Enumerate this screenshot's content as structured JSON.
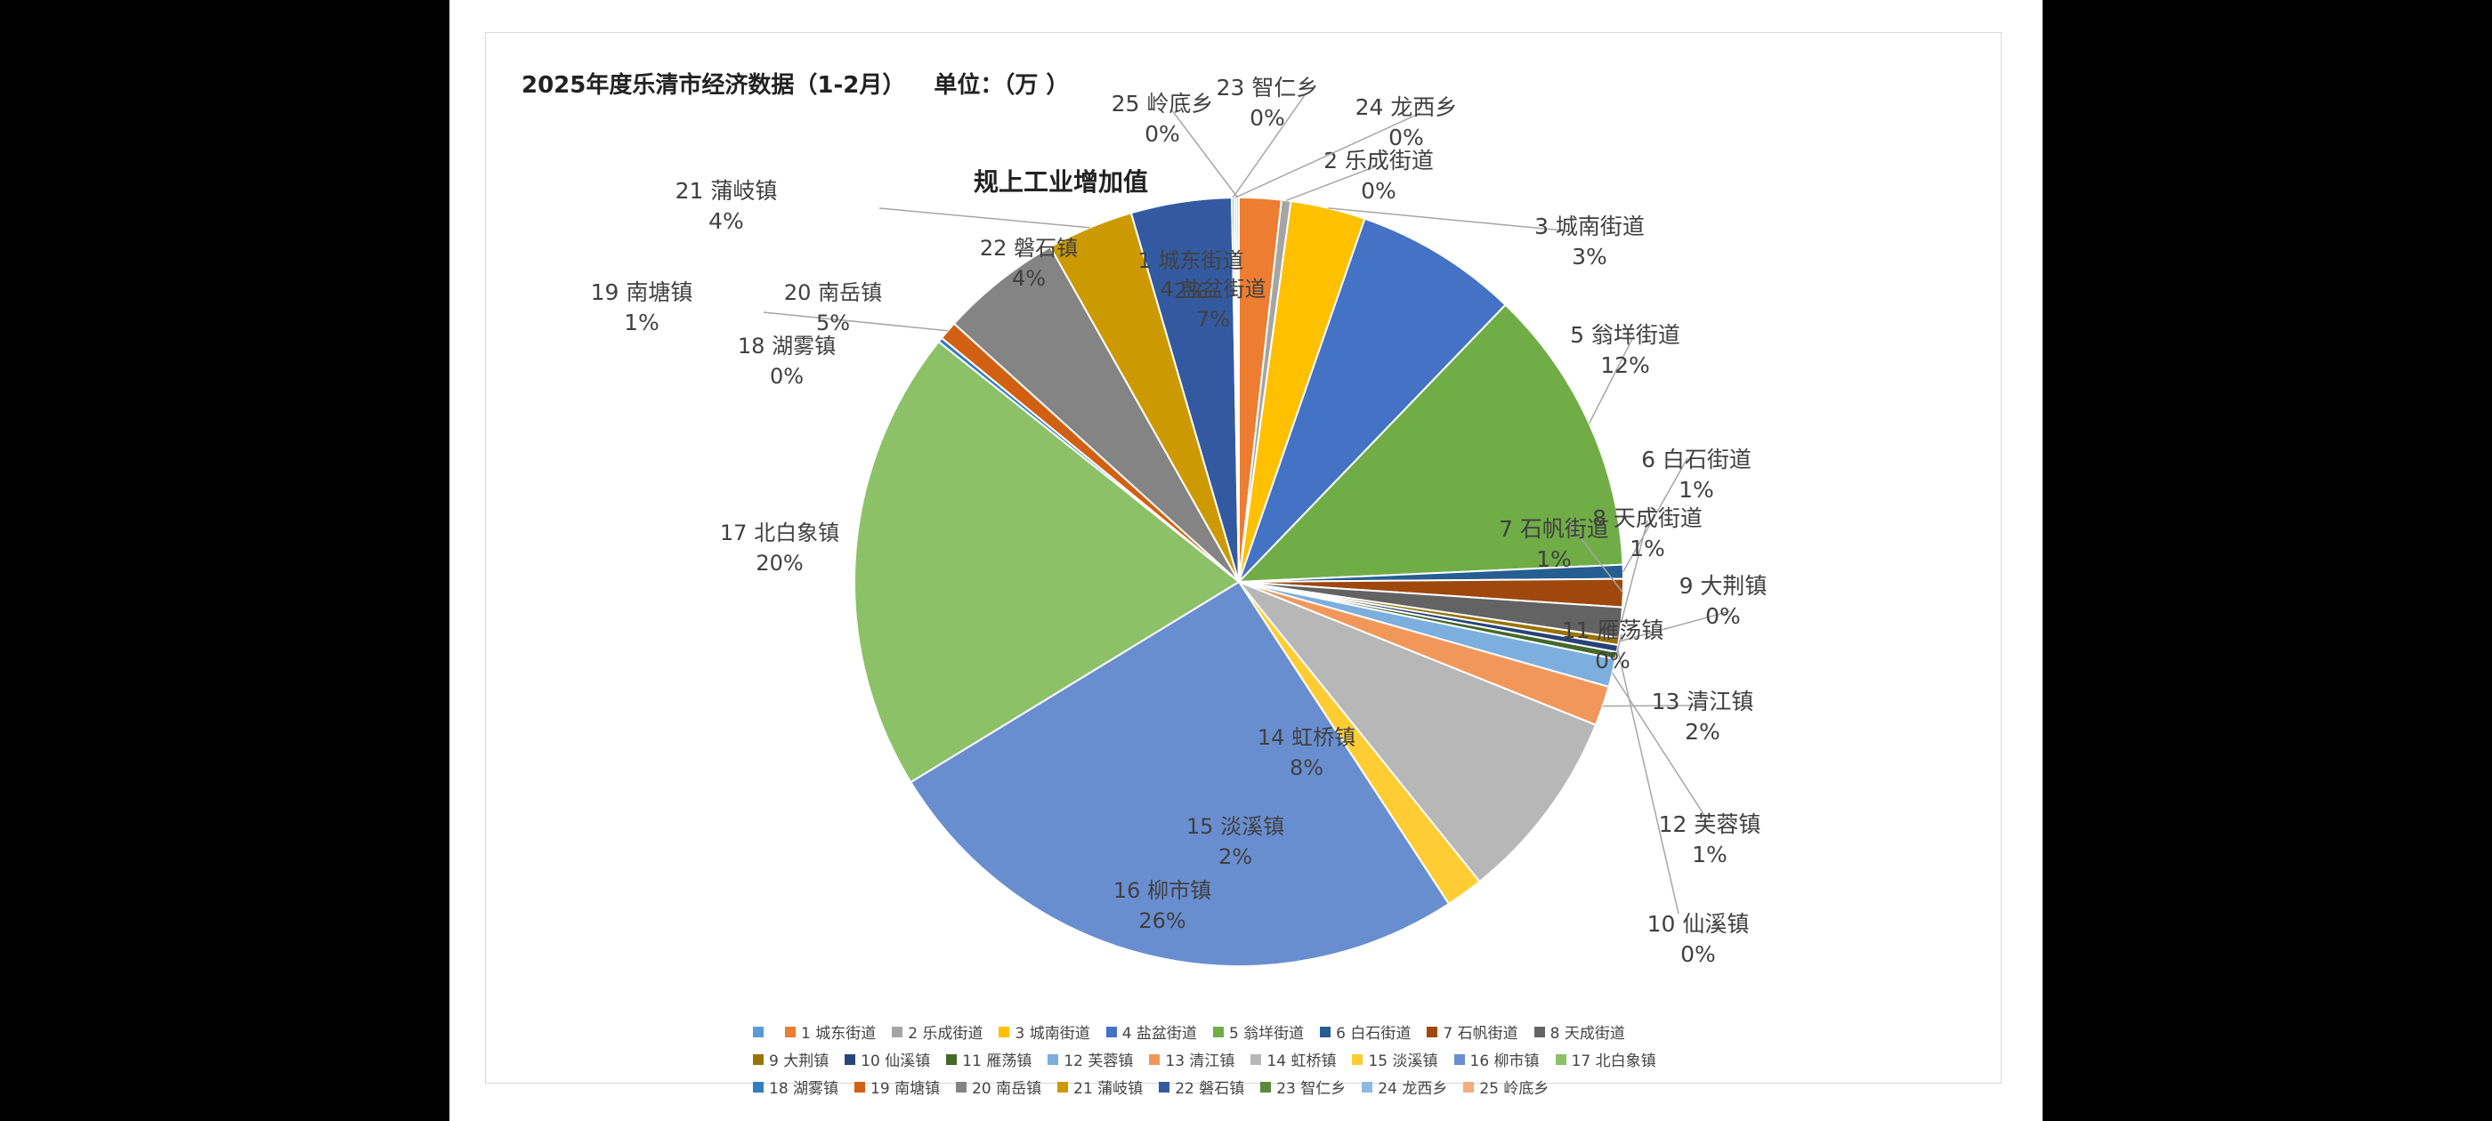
{
  "header": {
    "title": "2025年度乐清市经济数据（1-2月）",
    "unit": "单位：（万  ）"
  },
  "chart_data": {
    "type": "pie",
    "title": "规上工业增加值",
    "slices": [
      {
        "name": "1 城东街道",
        "label": "1 城东街道",
        "pct": "2%",
        "value": 1.8,
        "color": "#ED7D31"
      },
      {
        "name": "2 乐成街道",
        "label": "2 乐成街道",
        "pct": "0%",
        "value": 0.4,
        "color": "#A5A5A5"
      },
      {
        "name": "3 城南街道",
        "label": "3 城南街道",
        "pct": "3%",
        "value": 3.2,
        "color": "#FFC000"
      },
      {
        "name": "4 盐盆街道",
        "label": "4 盐盆街道",
        "pct": "7%",
        "value": 7.0,
        "color": "#4472C4"
      },
      {
        "name": "5 翁垟街道",
        "label": "5 翁垟街道",
        "pct": "12%",
        "value": 12.3,
        "color": "#70AD47"
      },
      {
        "name": "6 白石街道",
        "label": "6 白石街道",
        "pct": "1%",
        "value": 0.6,
        "color": "#255E91"
      },
      {
        "name": "7 石帆街道",
        "label": "7 石帆街道",
        "pct": "1%",
        "value": 1.2,
        "color": "#9E480E"
      },
      {
        "name": "8 天成街道",
        "label": "8 天成街道",
        "pct": "1%",
        "value": 1.3,
        "color": "#636363"
      },
      {
        "name": "9 大荆镇",
        "label": "9 大荆镇",
        "pct": "0%",
        "value": 0.3,
        "color": "#997300"
      },
      {
        "name": "10 仙溪镇",
        "label": "10 仙溪镇",
        "pct": "0%",
        "value": 0.3,
        "color": "#264478"
      },
      {
        "name": "11 雁荡镇",
        "label": "11 雁荡镇",
        "pct": "0%",
        "value": 0.3,
        "color": "#43682B"
      },
      {
        "name": "12 芙蓉镇",
        "label": "12 芙蓉镇",
        "pct": "1%",
        "value": 1.2,
        "color": "#7CAFDD"
      },
      {
        "name": "13 清江镇",
        "label": "13 清江镇",
        "pct": "2%",
        "value": 1.7,
        "color": "#F1975A"
      },
      {
        "name": "14 虹桥镇",
        "label": "14 虹桥镇",
        "pct": "8%",
        "value": 8.3,
        "color": "#B7B7B7"
      },
      {
        "name": "15 淡溪镇",
        "label": "15 淡溪镇",
        "pct": "2%",
        "value": 1.6,
        "color": "#FFCD33"
      },
      {
        "name": "16 柳市镇",
        "label": "16 柳市镇",
        "pct": "26%",
        "value": 25.9,
        "color": "#698ED0"
      },
      {
        "name": "17 北白象镇",
        "label": "17 北白象镇",
        "pct": "20%",
        "value": 19.8,
        "color": "#8CC168"
      },
      {
        "name": "18 湖雾镇",
        "label": "18 湖雾镇",
        "pct": "0%",
        "value": 0.2,
        "color": "#327DC2"
      },
      {
        "name": "19 南塘镇",
        "label": "19 南塘镇",
        "pct": "1%",
        "value": 0.8,
        "color": "#D26012"
      },
      {
        "name": "20 南岳镇",
        "label": "20 南岳镇",
        "pct": "5%",
        "value": 5.2,
        "color": "#848484"
      },
      {
        "name": "21 蒲岐镇",
        "label": "21 蒲岐镇",
        "pct": "4%",
        "value": 3.7,
        "color": "#CC9A00"
      },
      {
        "name": "22 磐石镇",
        "label": "22 磐石镇",
        "pct": "4%",
        "value": 4.3,
        "color": "#335AA1"
      },
      {
        "name": "23 智仁乡",
        "label": "23 智仁乡",
        "pct": "0%",
        "value": 0.1,
        "color": "#5A8A39"
      },
      {
        "name": "24 龙西乡",
        "label": "24 龙西乡",
        "pct": "0%",
        "value": 0.1,
        "color": "#8FB8E3"
      },
      {
        "name": "25 岭底乡",
        "label": "25 岭底乡",
        "pct": "0%",
        "value": 0.1,
        "color": "#F4AC7C"
      }
    ],
    "legend_first_color": "#5B9BD5",
    "legend_rows": [
      [
        "",
        "1 城东街道",
        "2 乐成街道",
        "3 城南街道",
        "4 盐盆街道",
        "5 翁垟街道",
        "6 白石街道",
        "7 石帆街道",
        "8 天成街道"
      ],
      [
        "9 大荆镇",
        "10 仙溪镇",
        "11 雁荡镇",
        "12 芙蓉镇",
        "13 清江镇",
        "14 虹桥镇",
        "15 淡溪镇",
        "16 柳市镇",
        "17 北白象镇"
      ],
      [
        "18 湖雾镇",
        "19 南塘镇",
        "20 南岳镇",
        "21 蒲岐镇",
        "22 磐石镇",
        "23 智仁乡",
        "24 龙西乡",
        "25 岭底乡"
      ]
    ]
  }
}
